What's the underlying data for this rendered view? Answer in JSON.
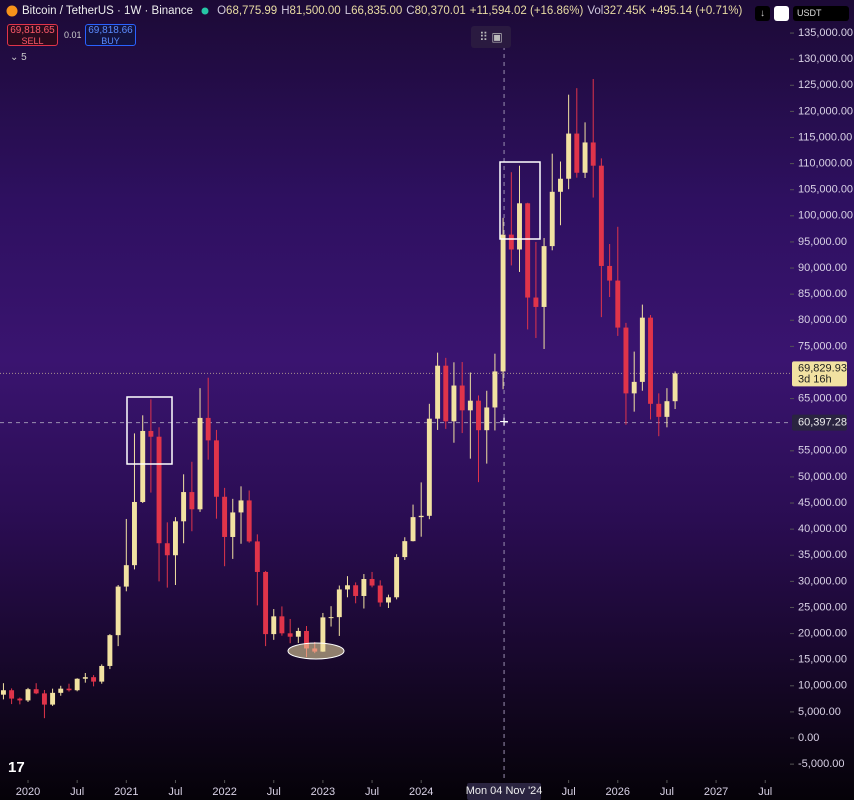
{
  "header": {
    "symbol": "Bitcoin / TetherUS · 1W · Binance",
    "legend": [
      {
        "label": "O",
        "value": "68,775.99"
      },
      {
        "label": "H",
        "value": "81,500.00"
      },
      {
        "label": "L",
        "value": "66,835.00"
      },
      {
        "label": "C",
        "value": "80,370.01"
      },
      {
        "label": "",
        "value": "+11,594.02 (+16.86%)"
      },
      {
        "label": "Vol",
        "value": "327.45K"
      },
      {
        "label": "",
        "value": "+495.14 (+0.71%)"
      }
    ],
    "sell_price": "69,818.65",
    "sell": "SELL",
    "spread": "0.01",
    "buy_price": "69,818.66",
    "buy": "BUY",
    "indicators": "5",
    "currency": "USDT"
  },
  "chart_data": {
    "type": "candlestick",
    "title": "Bitcoin / TetherUS · 1W · Binance",
    "x": [
      2019.75,
      2019.833,
      2019.917,
      2020.0,
      2020.083,
      2020.167,
      2020.25,
      2020.333,
      2020.417,
      2020.5,
      2020.583,
      2020.667,
      2020.75,
      2020.833,
      2020.917,
      2021.0,
      2021.083,
      2021.167,
      2021.25,
      2021.333,
      2021.417,
      2021.5,
      2021.583,
      2021.667,
      2021.75,
      2021.833,
      2021.917,
      2022.0,
      2022.083,
      2022.167,
      2022.25,
      2022.333,
      2022.417,
      2022.5,
      2022.583,
      2022.667,
      2022.75,
      2022.833,
      2022.917,
      2023.0,
      2023.083,
      2023.167,
      2023.25,
      2023.333,
      2023.417,
      2023.5,
      2023.583,
      2023.667,
      2023.75,
      2023.833,
      2023.917,
      2024.0,
      2024.083,
      2024.167,
      2024.25,
      2024.333,
      2024.417,
      2024.5,
      2024.583,
      2024.667,
      2024.75,
      2024.833,
      2024.917,
      2025.0,
      2025.083,
      2025.167,
      2025.25,
      2025.333,
      2025.417,
      2025.5,
      2025.583,
      2025.667,
      2025.75,
      2025.833,
      2025.917,
      2026.0,
      2026.083,
      2026.167,
      2026.25,
      2026.333,
      2026.417,
      2026.5,
      2026.583
    ],
    "open": [
      8300,
      9150,
      7550,
      7200,
      9350,
      8550,
      6400,
      8650,
      9450,
      9150,
      11350,
      11650,
      10800,
      13800,
      19700,
      29000,
      33100,
      45200,
      58800,
      57700,
      37300,
      35000,
      41500,
      47100,
      43800,
      61300,
      57000,
      46200,
      38500,
      43200,
      45500,
      37650,
      31800,
      19900,
      23300,
      20050,
      19400,
      20500,
      17150,
      16550,
      23100,
      23150,
      28450,
      29250,
      27200,
      30450,
      29200,
      25950,
      26950,
      34650,
      37700,
      42300,
      42550,
      61150,
      71300,
      60650,
      67500,
      62750,
      64600,
      58950,
      63300,
      70200,
      96400,
      93550,
      102400,
      84350,
      82550,
      94200,
      104600,
      107100,
      115750,
      108250,
      114050,
      109600,
      90400,
      87600,
      78600,
      66000,
      68200,
      80500,
      64000,
      61500,
      64500
    ],
    "high": [
      10500,
      9500,
      7750,
      9600,
      10500,
      9200,
      9450,
      10000,
      10400,
      11450,
      12450,
      12050,
      14100,
      19900,
      29300,
      41950,
      58350,
      61800,
      64850,
      59500,
      41300,
      42300,
      50500,
      52900,
      67000,
      69000,
      59000,
      47900,
      45800,
      48200,
      47400,
      39000,
      32000,
      24700,
      25200,
      22800,
      21100,
      21450,
      18400,
      23950,
      25250,
      29200,
      31000,
      29800,
      31400,
      31800,
      30200,
      27450,
      35200,
      38450,
      44700,
      48950,
      64000,
      73800,
      72800,
      71950,
      72000,
      70000,
      65600,
      66500,
      73600,
      99600,
      108350,
      109600,
      102500,
      95000,
      95750,
      111900,
      110400,
      123200,
      124450,
      117900,
      126200,
      111000,
      94600,
      97900,
      79500,
      74000,
      83000,
      81000,
      66000,
      67000,
      70200
    ],
    "low": [
      7400,
      6500,
      6450,
      6900,
      8400,
      3800,
      6150,
      8100,
      8900,
      8950,
      10600,
      9900,
      10400,
      13200,
      17600,
      28100,
      32300,
      45000,
      47000,
      30000,
      28800,
      29300,
      37300,
      39600,
      43300,
      53300,
      42000,
      32900,
      34300,
      37200,
      37400,
      25400,
      17600,
      18800,
      19600,
      18150,
      18200,
      15500,
      16250,
      16500,
      21350,
      19550,
      26950,
      25800,
      24800,
      28850,
      25150,
      24900,
      26550,
      34100,
      37650,
      38550,
      41900,
      59000,
      59200,
      56550,
      58400,
      53500,
      49000,
      52550,
      58900,
      66800,
      90500,
      89250,
      78250,
      76600,
      74500,
      93400,
      98200,
      105100,
      107300,
      107250,
      103500,
      80600,
      84450,
      77000,
      60000,
      62500,
      66500,
      61000,
      57800,
      59500,
      63000
    ],
    "close": [
      9150,
      7550,
      7200,
      9350,
      8550,
      6400,
      8650,
      9450,
      9150,
      11350,
      11650,
      10800,
      13800,
      19700,
      29000,
      33100,
      45200,
      58800,
      57700,
      37300,
      35000,
      41500,
      47100,
      43800,
      61300,
      57000,
      46200,
      38500,
      43200,
      45500,
      37650,
      31800,
      19900,
      23300,
      20050,
      19400,
      20500,
      17150,
      16550,
      23100,
      23150,
      28450,
      29250,
      27200,
      30450,
      29200,
      25950,
      26950,
      34650,
      37700,
      42300,
      42550,
      61150,
      71300,
      60650,
      67500,
      62750,
      64600,
      58950,
      63300,
      70200,
      96400,
      93550,
      102400,
      84350,
      82550,
      94200,
      104600,
      107100,
      115750,
      108250,
      114050,
      109600,
      90400,
      87600,
      78600,
      66000,
      68200,
      80500,
      64000,
      61500,
      64500,
      69830
    ],
    "up_color": "#f2e2a2",
    "down_color": "#e0344a",
    "xlim": [
      2019.715,
      2027.752
    ],
    "xticks": [
      2020,
      {
        "value": 2020.5,
        "label": "Jul"
      },
      2021,
      {
        "value": 2021.5,
        "label": "Jul"
      },
      2022,
      {
        "value": 2022.5,
        "label": "Jul"
      },
      2023,
      {
        "value": 2023.5,
        "label": "Jul"
      },
      2024,
      {
        "value": 2025.5,
        "label": "Jul"
      },
      2026,
      {
        "value": 2026.5,
        "label": "Jul"
      },
      2027,
      {
        "value": 2027.5,
        "label": "Jul"
      }
    ],
    "ylim": [
      -8040,
      141330
    ],
    "yticks": [
      {
        "value": 135000,
        "label": "135,000.00"
      },
      {
        "value": 130000,
        "label": "130,000.00"
      },
      {
        "value": 125000,
        "label": "125,000.00"
      },
      {
        "value": 120000,
        "label": "120,000.00"
      },
      {
        "value": 115000,
        "label": "115,000.00"
      },
      {
        "value": 110000,
        "label": "110,000.00"
      },
      {
        "value": 105000,
        "label": "105,000.00"
      },
      {
        "value": 100000,
        "label": "100,000.00"
      },
      {
        "value": 95000,
        "label": "95,000.00"
      },
      {
        "value": 90000,
        "label": "90,000.00"
      },
      {
        "value": 85000,
        "label": "85,000.00"
      },
      {
        "value": 80000,
        "label": "80,000.00"
      },
      {
        "value": 75000,
        "label": "75,000.00"
      },
      {
        "value": 65000,
        "label": "65,000.00"
      },
      {
        "value": 55000,
        "label": "55,000.00"
      },
      {
        "value": 50000,
        "label": "50,000.00"
      },
      {
        "value": 45000,
        "label": "45,000.00"
      },
      {
        "value": 40000,
        "label": "40,000.00"
      },
      {
        "value": 35000,
        "label": "35,000.00"
      },
      {
        "value": 30000,
        "label": "30,000.00"
      },
      {
        "value": 25000,
        "label": "25,000.00"
      },
      {
        "value": 20000,
        "label": "20,000.00"
      },
      {
        "value": 15000,
        "label": "15,000.00"
      },
      {
        "value": 10000,
        "label": "10,000.00"
      },
      {
        "value": 5000,
        "label": "5,000.00"
      },
      {
        "value": 0,
        "label": "0.00"
      },
      {
        "value": -5000,
        "label": "-5,000.00"
      }
    ],
    "grid": false,
    "last_price": {
      "value": 69829.93,
      "label": "69,829.93",
      "countdown": "3d 16h"
    },
    "crosshair": {
      "x": 2024.843,
      "x_label": "Mon 04 Nov '24",
      "y": 60397.28,
      "y_label": "60,397.28"
    }
  }
}
